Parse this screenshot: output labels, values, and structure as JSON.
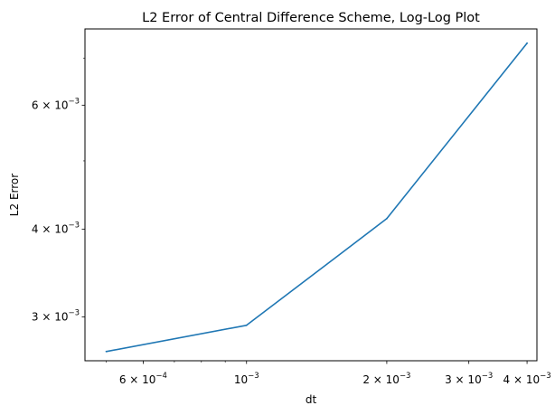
{
  "chart_data": {
    "type": "line",
    "title": "L2 Error of Central Difference Scheme, Log-Log Plot",
    "xlabel": "dt",
    "ylabel": "L2 Error",
    "xscale": "log",
    "yscale": "log",
    "xlim": [
      0.00045,
      0.0042
    ],
    "ylim": [
      0.0026,
      0.0077
    ],
    "grid": false,
    "legend": "none",
    "line_color": "#1f77b4",
    "series": [
      {
        "x": [
          0.0005,
          0.001,
          0.002,
          0.004
        ],
        "y": [
          0.00268,
          0.00292,
          0.00414,
          0.00735
        ]
      }
    ],
    "x_ticks": [
      {
        "value": 0.0006,
        "mantissa": "6",
        "times": "×",
        "base": "10",
        "exponent": "−4"
      },
      {
        "value": 0.001,
        "mantissa": "",
        "times": "",
        "base": "10",
        "exponent": "−3"
      },
      {
        "value": 0.002,
        "mantissa": "2",
        "times": "×",
        "base": "10",
        "exponent": "−3"
      },
      {
        "value": 0.003,
        "mantissa": "3",
        "times": "×",
        "base": "10",
        "exponent": "−3"
      },
      {
        "value": 0.004,
        "mantissa": "4",
        "times": "×",
        "base": "10",
        "exponent": "−3"
      }
    ],
    "x_minor_ticks": [
      0.0005,
      0.0007,
      0.0008,
      0.0009
    ],
    "y_ticks": [
      {
        "value": 0.003,
        "mantissa": "3",
        "times": "×",
        "base": "10",
        "exponent": "−3"
      },
      {
        "value": 0.004,
        "mantissa": "4",
        "times": "×",
        "base": "10",
        "exponent": "−3"
      },
      {
        "value": 0.006,
        "mantissa": "6",
        "times": "×",
        "base": "10",
        "exponent": "−3"
      }
    ],
    "y_minor_ticks": [
      0.005,
      0.007
    ]
  }
}
